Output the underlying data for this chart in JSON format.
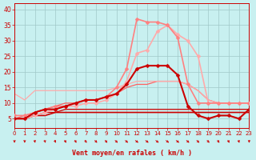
{
  "xlabel": "Vent moyen/en rafales ( km/h )",
  "bg_color": "#c8f0f0",
  "grid_color": "#a0c8c8",
  "xlim": [
    0,
    23
  ],
  "ylim": [
    2,
    42
  ],
  "yticks": [
    5,
    10,
    15,
    20,
    25,
    30,
    35,
    40
  ],
  "xticks": [
    0,
    1,
    2,
    3,
    4,
    5,
    6,
    7,
    8,
    9,
    10,
    11,
    12,
    13,
    14,
    15,
    16,
    17,
    18,
    19,
    20,
    21,
    22,
    23
  ],
  "series": [
    {
      "x": [
        0,
        1,
        2,
        3,
        4,
        5,
        6,
        7,
        8,
        9,
        10,
        11,
        12,
        13,
        14,
        15,
        16,
        17,
        18,
        19,
        20,
        21,
        22,
        23
      ],
      "y": [
        5,
        5,
        7,
        8,
        8,
        9,
        10,
        11,
        11,
        12,
        13,
        16,
        21,
        22,
        22,
        22,
        19,
        9,
        6,
        5,
        6,
        6,
        5,
        8
      ],
      "color": "#cc0000",
      "lw": 1.5,
      "marker": "D",
      "ms": 2.5,
      "zorder": 5
    },
    {
      "x": [
        0,
        1,
        2,
        3,
        4,
        5,
        6,
        7,
        8,
        9,
        10,
        11,
        12,
        13,
        14,
        15,
        16,
        17,
        18,
        19,
        20,
        21,
        22,
        23
      ],
      "y": [
        6,
        6,
        7,
        8,
        9,
        9,
        10,
        11,
        11,
        12,
        15,
        21,
        37,
        36,
        36,
        35,
        31,
        16,
        10,
        10,
        10,
        10,
        10,
        10
      ],
      "color": "#ff8080",
      "lw": 1.2,
      "marker": "D",
      "ms": 2.5,
      "zorder": 4
    },
    {
      "x": [
        0,
        1,
        2,
        3,
        4,
        5,
        6,
        7,
        8,
        9,
        10,
        11,
        12,
        13,
        14,
        15,
        16,
        17,
        18,
        19,
        20,
        21,
        22,
        23
      ],
      "y": [
        5,
        5,
        6,
        7,
        8,
        9,
        9,
        10,
        10,
        11,
        13,
        17,
        26,
        27,
        33,
        35,
        32,
        30,
        25,
        10,
        10,
        10,
        10,
        10
      ],
      "color": "#ffaaaa",
      "lw": 1.2,
      "marker": "D",
      "ms": 2.5,
      "zorder": 3
    },
    {
      "x": [
        0,
        1,
        2,
        3,
        4,
        5,
        6,
        7,
        8,
        9,
        10,
        11,
        12,
        13,
        14,
        15,
        16,
        17,
        18,
        19,
        20,
        21,
        22,
        23
      ],
      "y": [
        5,
        6,
        7,
        8,
        9,
        10,
        10,
        11,
        11,
        12,
        13,
        15,
        16,
        16,
        17,
        17,
        17,
        16,
        14,
        11,
        10,
        10,
        10,
        10
      ],
      "color": "#ff6060",
      "lw": 0.9,
      "marker": null,
      "ms": 0,
      "zorder": 2
    },
    {
      "x": [
        0,
        1,
        2,
        3,
        4,
        5,
        6,
        7,
        8,
        9,
        10,
        11,
        12,
        13,
        14,
        15,
        16,
        17,
        18,
        19,
        20,
        21,
        22,
        23
      ],
      "y": [
        13,
        11,
        14,
        14,
        14,
        14,
        14,
        14,
        14,
        14,
        15,
        16,
        17,
        17,
        17,
        17,
        17,
        16,
        14,
        11,
        10,
        10,
        10,
        10
      ],
      "color": "#ffaaaa",
      "lw": 0.9,
      "marker": null,
      "ms": 0,
      "zorder": 2
    },
    {
      "x": [
        0,
        1,
        2,
        3,
        4,
        5,
        6,
        7,
        8,
        9,
        10,
        11,
        12,
        13,
        14,
        15,
        16,
        17,
        18,
        19,
        20,
        21,
        22,
        23
      ],
      "y": [
        5,
        5,
        6,
        6,
        7,
        7,
        7,
        7,
        7,
        7,
        7,
        7,
        7,
        7,
        7,
        7,
        7,
        7,
        7,
        7,
        7,
        7,
        7,
        7
      ],
      "color": "#cc0000",
      "lw": 1.2,
      "marker": null,
      "ms": 0,
      "zorder": 2
    },
    {
      "x": [
        0,
        1,
        2,
        3,
        4,
        5,
        6,
        7,
        8,
        9,
        10,
        11,
        12,
        13,
        14,
        15,
        16,
        17,
        18,
        19,
        20,
        21,
        22,
        23
      ],
      "y": [
        5,
        5,
        6,
        7,
        7,
        8,
        8,
        8,
        8,
        8,
        8,
        8,
        8,
        8,
        8,
        8,
        8,
        8,
        8,
        8,
        8,
        8,
        8,
        8
      ],
      "color": "#cc0000",
      "lw": 0.9,
      "marker": null,
      "ms": 0,
      "zorder": 2
    }
  ],
  "arrow_color": "#cc0000",
  "xlabel_color": "#cc0000",
  "tick_color": "#cc0000",
  "arrow_angles": [
    90,
    90,
    80,
    75,
    70,
    65,
    65,
    60,
    55,
    55,
    50,
    48,
    45,
    45,
    45,
    45,
    45,
    48,
    50,
    55,
    60,
    65,
    75,
    90
  ]
}
